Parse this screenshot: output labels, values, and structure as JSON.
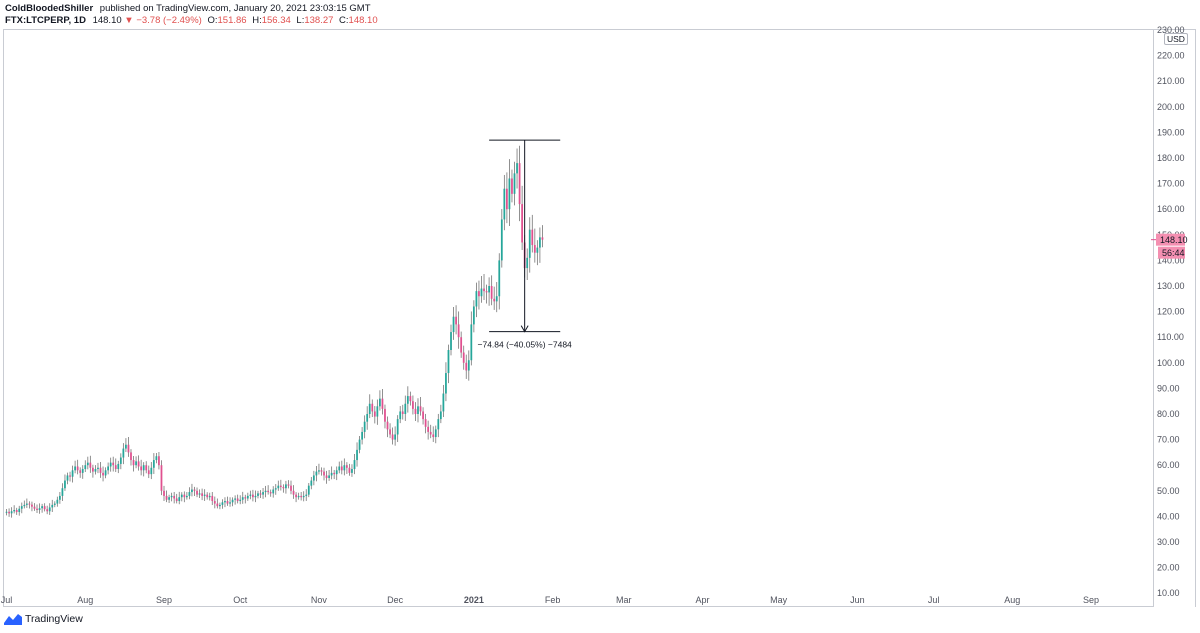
{
  "header": {
    "author": "ColdBloodedShiller",
    "published_text": "published on TradingView.com, January 20, 2021 23:03:15 GMT"
  },
  "legend": {
    "symbol": "FTX:LTCPERP, 1D",
    "last": "148.10",
    "change": "−3.78 (−2.49%)",
    "open_label": "O:",
    "open": "151.86",
    "high_label": "H:",
    "high": "156.34",
    "low_label": "L:",
    "low": "138.27",
    "close_label": "C:",
    "close": "148.10"
  },
  "currency": "USD",
  "price_tag": {
    "price": "148.10",
    "countdown": "56:44"
  },
  "measurement": {
    "top": 187.0,
    "bottom": 112.16,
    "x_start": "2021-01-07",
    "x_end": "2021-02-04",
    "label": "−74.84 (−40.05%) −7484"
  },
  "footer": {
    "brand": "TradingView"
  },
  "colors": {
    "up": "#26a69a",
    "down": "#e0508f",
    "wick": "#757575",
    "axis_text": "#50535e",
    "tag_bg": "#f48fb1",
    "annotation": "#131722"
  },
  "chart_data": {
    "type": "candlestick",
    "title": "FTX:LTCPERP, 1D",
    "xlabel": "",
    "ylabel": "",
    "x_range": [
      "2020-06-30",
      "2021-09-25"
    ],
    "ylim": [
      5,
      230
    ],
    "y_ticks": [
      10,
      20,
      30,
      40,
      50,
      60,
      70,
      80,
      90,
      100,
      110,
      120,
      130,
      140,
      150,
      160,
      170,
      180,
      190,
      200,
      210,
      220,
      230
    ],
    "y_tick_labels": [
      "10.00",
      "20.00",
      "30.00",
      "40.00",
      "50.00",
      "60.00",
      "70.00",
      "80.00",
      "90.00",
      "100.00",
      "110.00",
      "120.00",
      "130.00",
      "140.00",
      "150.00",
      "160.00",
      "170.00",
      "180.00",
      "190.00",
      "200.00",
      "210.00",
      "220.00",
      "230.00"
    ],
    "x_ticks": [
      "2020-07-01",
      "2020-08-01",
      "2020-09-01",
      "2020-10-01",
      "2020-11-01",
      "2020-12-01",
      "2021-01-01",
      "2021-02-01",
      "2021-03-01",
      "2021-04-01",
      "2021-05-01",
      "2021-06-01",
      "2021-07-01",
      "2021-08-01",
      "2021-09-01"
    ],
    "x_tick_labels": [
      "Jul",
      "Aug",
      "Sep",
      "Oct",
      "Nov",
      "Dec",
      "2021",
      "Feb",
      "Mar",
      "Apr",
      "May",
      "Jun",
      "Jul",
      "Aug",
      "Sep"
    ],
    "grid": false,
    "series": [
      {
        "start_date": "2020-06-30",
        "closes": [
          41.5,
          41.8,
          41.2,
          42.0,
          42.5,
          41.7,
          43.0,
          44.0,
          44.5,
          45.0,
          44.6,
          43.8,
          43.0,
          42.5,
          43.2,
          44.0,
          42.8,
          42.0,
          43.5,
          44.5,
          45.0,
          46.5,
          48.0,
          51.0,
          54.0,
          56.0,
          55.5,
          58.0,
          59.5,
          58.0,
          57.0,
          58.5,
          60.0,
          61.0,
          59.0,
          57.5,
          58.5,
          59.0,
          57.0,
          56.0,
          58.0,
          59.5,
          61.0,
          60.0,
          58.5,
          60.5,
          63.0,
          66.5,
          68.0,
          65.0,
          62.0,
          60.0,
          61.5,
          59.5,
          58.0,
          60.0,
          58.0,
          56.5,
          59.0,
          62.0,
          63.5,
          60.0,
          50.0,
          48.0,
          46.5,
          47.5,
          48.0,
          47.0,
          46.0,
          47.5,
          48.5,
          47.5,
          48.0,
          49.5,
          50.5,
          50.0,
          48.5,
          49.0,
          48.0,
          48.5,
          47.5,
          48.0,
          46.0,
          45.0,
          44.0,
          44.5,
          45.5,
          46.0,
          45.0,
          45.5,
          46.5,
          47.0,
          46.0,
          46.5,
          47.5,
          47.0,
          48.0,
          48.5,
          47.5,
          48.0,
          49.0,
          48.5,
          49.5,
          50.0,
          49.5,
          49.0,
          50.5,
          51.0,
          52.0,
          51.5,
          51.0,
          52.5,
          52.0,
          50.0,
          48.5,
          47.5,
          48.0,
          47.5,
          48.0,
          48.5,
          52.0,
          54.0,
          56.0,
          57.5,
          58.0,
          57.5,
          56.0,
          55.0,
          56.0,
          57.0,
          56.5,
          58.0,
          59.5,
          58.0,
          60.0,
          59.0,
          57.0,
          58.5,
          62.0,
          66.0,
          70.0,
          73.0,
          77.0,
          80.0,
          84.0,
          81.0,
          79.0,
          83.0,
          86.0,
          82.0,
          77.0,
          74.0,
          72.0,
          70.0,
          72.0,
          78.0,
          81.0,
          80.0,
          84.0,
          87.0,
          85.0,
          82.0,
          80.0,
          83.0,
          81.0,
          78.0,
          75.0,
          73.0,
          72.0,
          71.0,
          74.0,
          78.0,
          81.0,
          88.0,
          96.0,
          105.0,
          112.0,
          118.0,
          115.0,
          110.0,
          104.0,
          100.0,
          97.0,
          101.0,
          115.0,
          122.0,
          128.0,
          126.0,
          129.0,
          128.0,
          127.5,
          130.0,
          125.0,
          124.0,
          126.0,
          140.0,
          156.0,
          168.0,
          160.0,
          172.0,
          166.0,
          174.0,
          178.0,
          162.0,
          147.0,
          137.0,
          141.0,
          152.0,
          146.0,
          143.0,
          145.0,
          149.0,
          148.1
        ]
      }
    ]
  }
}
